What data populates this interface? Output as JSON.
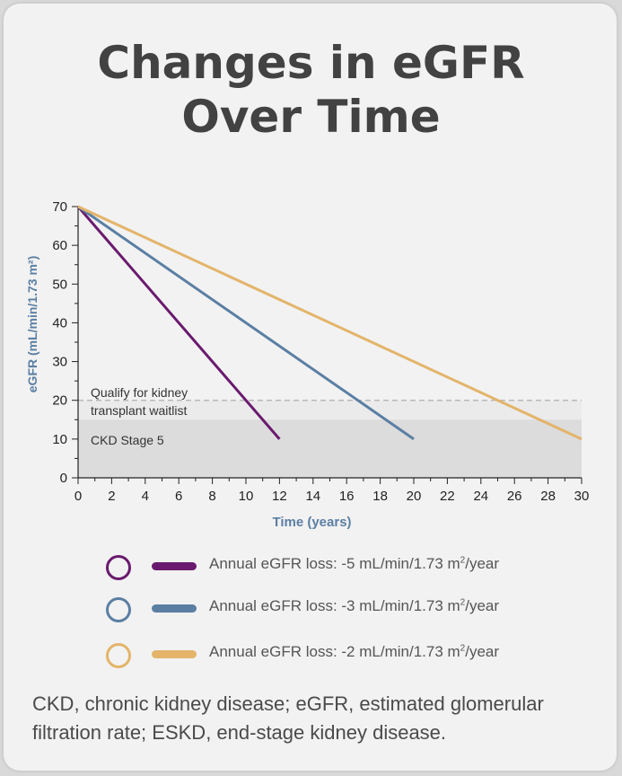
{
  "title_lines": [
    "Changes in eGFR",
    "Over Time"
  ],
  "colors": {
    "purple": "#6a1a6e",
    "blue": "#5b7fa3",
    "gold": "#e3b46a",
    "axis_label": "#5b7fa3",
    "band_light": "#ebebeb",
    "band_dark": "#dcdcdc"
  },
  "chart_data": {
    "type": "line",
    "xlabel": "Time (years)",
    "ylabel": "eGFR (mL/min/1.73 m²)",
    "xlim": [
      0,
      30
    ],
    "ylim": [
      0,
      70
    ],
    "x_ticks": [
      0,
      2,
      4,
      6,
      8,
      10,
      12,
      14,
      16,
      18,
      20,
      22,
      24,
      26,
      28,
      30
    ],
    "y_ticks": [
      0,
      10,
      20,
      30,
      40,
      50,
      60,
      70
    ],
    "series": [
      {
        "name": "Annual eGFR loss: -5 mL/min/1.73 m²/year",
        "color": "#6a1a6e",
        "x": [
          0,
          12
        ],
        "y": [
          70,
          10
        ]
      },
      {
        "name": "Annual eGFR loss: -3 mL/min/1.73 m²/year",
        "color": "#5b7fa3",
        "x": [
          0,
          20
        ],
        "y": [
          70,
          10
        ]
      },
      {
        "name": "Annual eGFR loss: -2 mL/min/1.73 m²/year",
        "color": "#e3b46a",
        "x": [
          0,
          30
        ],
        "y": [
          70,
          10
        ]
      }
    ],
    "reference_line": {
      "y": 20,
      "style": "dashed"
    },
    "bands": [
      {
        "label": "CKD Stage 5",
        "y0": 0,
        "y1": 15
      },
      {
        "label": "Qualify for kidney transplant waitlist",
        "y0": 15,
        "y1": 20
      }
    ],
    "annotations": {
      "waitlist_line1": "Qualify for kidney",
      "waitlist_line2": "transplant waitlist",
      "ckd_stage": "CKD Stage 5"
    },
    "grid": false,
    "legend_position": "bottom"
  },
  "legend": [
    {
      "prefix": "Annual eGFR loss: -5 mL/min/1.73 m",
      "sup": "2",
      "suffix": "/year",
      "color": "#6a1a6e"
    },
    {
      "prefix": "Annual eGFR loss: -3 mL/min/1.73 m",
      "sup": "2",
      "suffix": "/year",
      "color": "#5b7fa3"
    },
    {
      "prefix": "Annual eGFR loss: -2 mL/min/1.73 m",
      "sup": "2",
      "suffix": "/year",
      "color": "#e3b46a"
    }
  ],
  "footnote": "CKD, chronic kidney disease; eGFR, estimated glomerular filtration rate; ESKD, end-stage kidney disease."
}
